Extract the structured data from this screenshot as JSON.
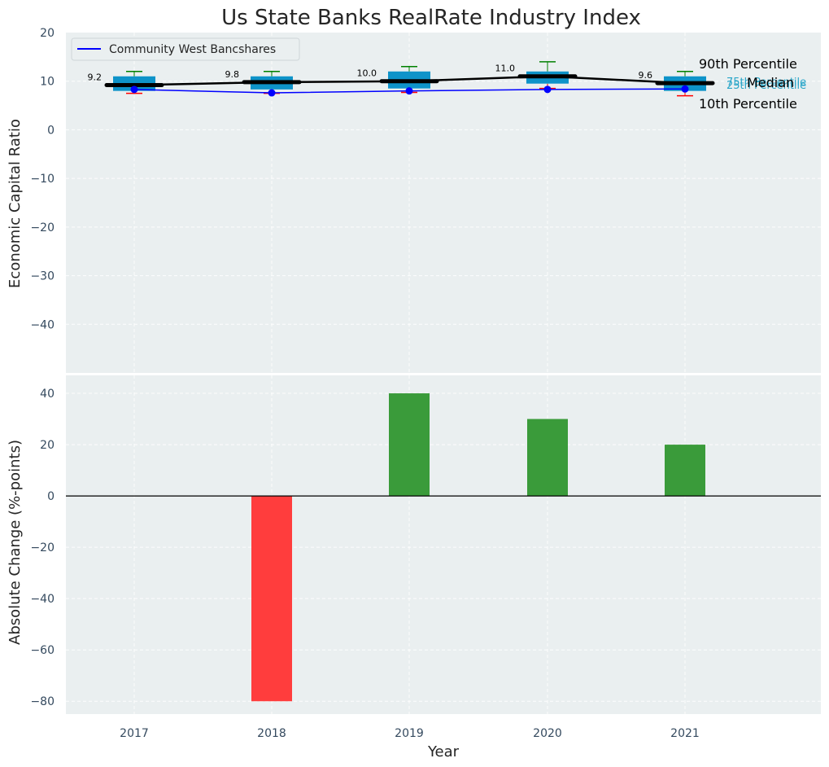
{
  "chart_data": [
    {
      "type": "boxplot",
      "title": "Us State Banks RealRate Industry Index",
      "ylabel": "Economic Capital Ratio",
      "ylim": [
        -50,
        20
      ],
      "yticks": [
        20,
        10,
        0,
        -10,
        -20,
        -30,
        -40
      ],
      "ytick_labels": [
        "20",
        "10",
        "0",
        "−10",
        "−20",
        "−30",
        "−40"
      ],
      "categories": [
        "2017",
        "2018",
        "2019",
        "2020",
        "2021"
      ],
      "median": [
        9.2,
        9.8,
        10.0,
        11.0,
        9.6
      ],
      "median_labels": [
        "9.2",
        "9.8",
        "10.0",
        "11.0",
        "9.6"
      ],
      "p25": [
        8.0,
        8.3,
        8.5,
        9.5,
        8.0
      ],
      "p75": [
        11.0,
        11.0,
        12.0,
        12.0,
        11.0
      ],
      "p10": [
        7.5,
        7.5,
        7.7,
        8.5,
        7.0
      ],
      "p90": [
        12.0,
        12.0,
        13.0,
        14.0,
        12.0
      ],
      "series": [
        {
          "name": "Community West Bancshares",
          "values": [
            8.3,
            7.6,
            8.0,
            8.3,
            8.4
          ]
        }
      ],
      "legend": "top-left",
      "annotations": {
        "p90": "90th Percentile",
        "p75": "75th Percentile",
        "median": "Median",
        "p25": "25th Percentile",
        "p10": "10th Percentile"
      }
    },
    {
      "type": "bar",
      "xlabel": "Year",
      "ylabel": "Absolute Change (%-points)",
      "ylim": [
        -85,
        47
      ],
      "yticks": [
        40,
        20,
        0,
        -20,
        -40,
        -60,
        -80
      ],
      "ytick_labels": [
        "40",
        "20",
        "0",
        "−20",
        "−40",
        "−60",
        "−80"
      ],
      "categories": [
        "2017",
        "2018",
        "2019",
        "2020",
        "2021"
      ],
      "values": [
        0,
        -80,
        40,
        30,
        20
      ]
    }
  ],
  "colors": {
    "background": "#eaeff0",
    "box": "#0e93c9",
    "median": "#000000",
    "line": "#0000ff",
    "p90_whisker": "#008000",
    "p10_whisker": "#ff0000",
    "bar_positive": "#3a9b3a",
    "bar_negative": "#ff3d3d",
    "pct_label_blue": "#2aa6c9"
  }
}
